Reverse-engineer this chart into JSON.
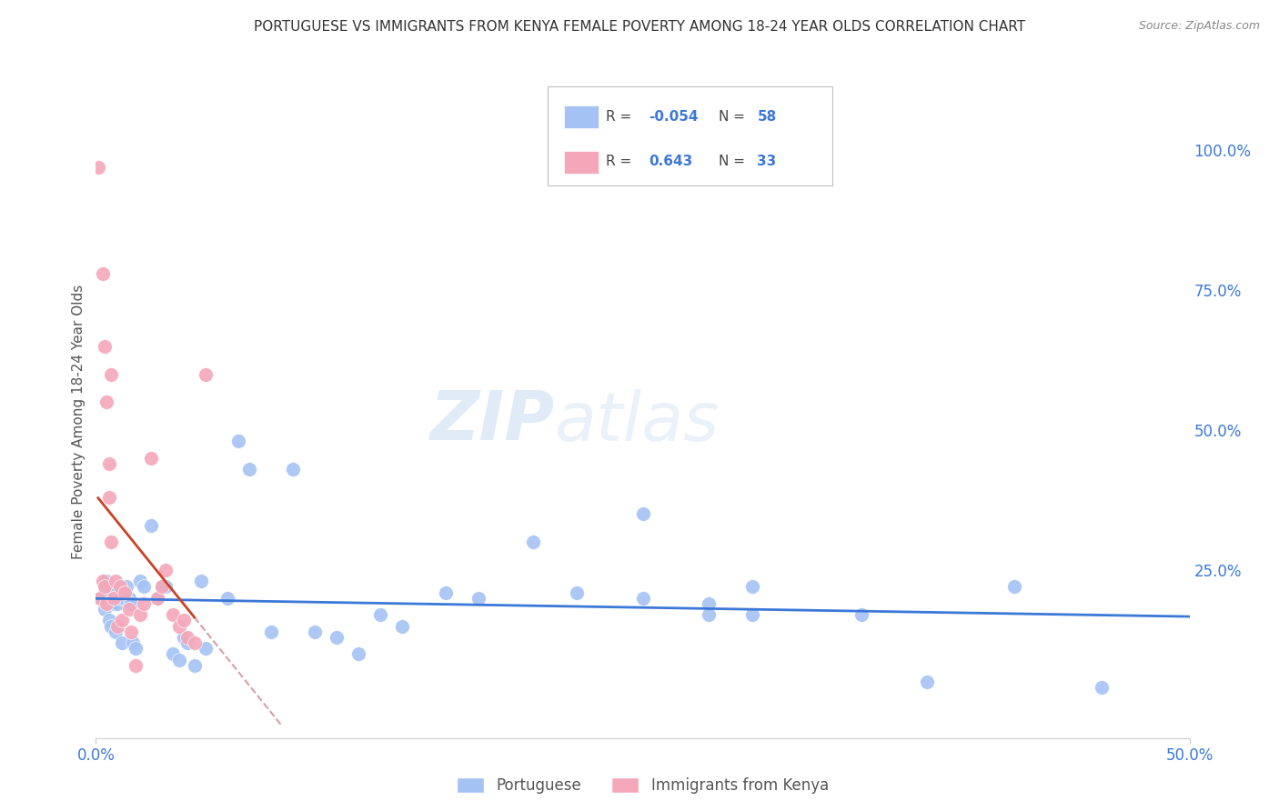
{
  "title": "PORTUGUESE VS IMMIGRANTS FROM KENYA FEMALE POVERTY AMONG 18-24 YEAR OLDS CORRELATION CHART",
  "source": "Source: ZipAtlas.com",
  "ylabel": "Female Poverty Among 18-24 Year Olds",
  "R1": "-0.054",
  "N1": "58",
  "R2": "0.643",
  "N2": "33",
  "color_blue": "#a4c2f4",
  "color_pink": "#f4a7b9",
  "color_line_blue": "#3c78d8",
  "color_line_pink": "#cc4125",
  "color_line_pink_dash": "#d5a0a8",
  "watermark_zip": "ZIP",
  "watermark_atlas": "atlas",
  "xlim": [
    0.0,
    0.5
  ],
  "ylim": [
    -0.05,
    1.08
  ],
  "blue_x": [
    0.002,
    0.003,
    0.004,
    0.004,
    0.005,
    0.005,
    0.006,
    0.007,
    0.007,
    0.008,
    0.009,
    0.01,
    0.01,
    0.011,
    0.012,
    0.013,
    0.014,
    0.015,
    0.016,
    0.017,
    0.018,
    0.02,
    0.022,
    0.025,
    0.028,
    0.03,
    0.032,
    0.035,
    0.038,
    0.04,
    0.042,
    0.045,
    0.048,
    0.05,
    0.06,
    0.065,
    0.07,
    0.08,
    0.09,
    0.1,
    0.11,
    0.12,
    0.13,
    0.14,
    0.16,
    0.175,
    0.2,
    0.22,
    0.25,
    0.28,
    0.3,
    0.35,
    0.38,
    0.42,
    0.46,
    0.25,
    0.28,
    0.3
  ],
  "blue_y": [
    0.2,
    0.2,
    0.21,
    0.18,
    0.2,
    0.23,
    0.16,
    0.21,
    0.15,
    0.19,
    0.14,
    0.19,
    0.22,
    0.2,
    0.12,
    0.2,
    0.22,
    0.2,
    0.19,
    0.12,
    0.11,
    0.23,
    0.22,
    0.33,
    0.2,
    0.22,
    0.22,
    0.1,
    0.09,
    0.13,
    0.12,
    0.08,
    0.23,
    0.11,
    0.2,
    0.48,
    0.43,
    0.14,
    0.43,
    0.14,
    0.13,
    0.1,
    0.17,
    0.15,
    0.21,
    0.2,
    0.3,
    0.21,
    0.2,
    0.19,
    0.17,
    0.17,
    0.05,
    0.22,
    0.04,
    0.35,
    0.17,
    0.22
  ],
  "pink_x": [
    0.001,
    0.002,
    0.003,
    0.003,
    0.004,
    0.004,
    0.005,
    0.005,
    0.006,
    0.006,
    0.007,
    0.007,
    0.008,
    0.009,
    0.01,
    0.011,
    0.012,
    0.013,
    0.015,
    0.016,
    0.018,
    0.02,
    0.022,
    0.025,
    0.028,
    0.03,
    0.032,
    0.035,
    0.038,
    0.04,
    0.042,
    0.045,
    0.05
  ],
  "pink_y": [
    0.97,
    0.2,
    0.78,
    0.23,
    0.65,
    0.22,
    0.55,
    0.19,
    0.44,
    0.38,
    0.6,
    0.3,
    0.2,
    0.23,
    0.15,
    0.22,
    0.16,
    0.21,
    0.18,
    0.14,
    0.08,
    0.17,
    0.19,
    0.45,
    0.2,
    0.22,
    0.25,
    0.17,
    0.15,
    0.16,
    0.13,
    0.12,
    0.6
  ]
}
